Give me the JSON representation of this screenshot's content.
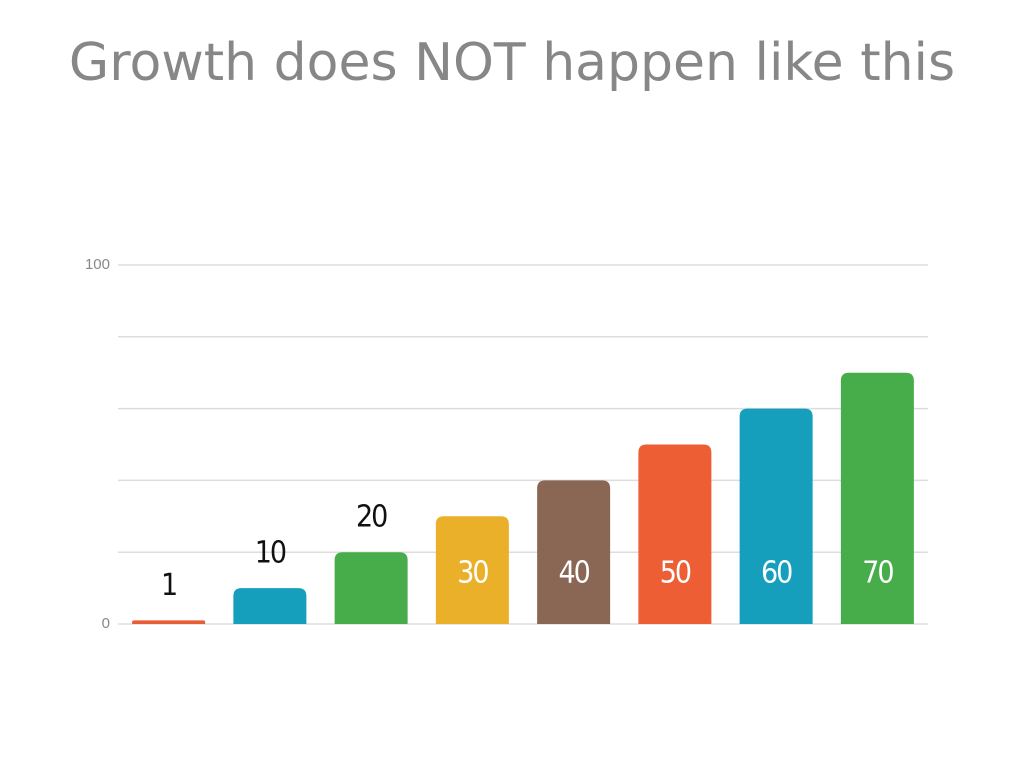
{
  "chart_data": {
    "type": "bar",
    "title": "Growth does NOT happen like this",
    "categories": [
      null,
      null,
      null,
      null,
      null,
      null,
      null,
      null
    ],
    "values": [
      1,
      10,
      20,
      30,
      40,
      50,
      60,
      70
    ],
    "colors": [
      "#e85d36",
      "#159fbc",
      "#47ac4a",
      "#eab02a",
      "#8a6654",
      "#ee5e34",
      "#159fbc",
      "#47ac4a"
    ],
    "ylim": [
      0,
      100
    ],
    "yticks": [
      0,
      100
    ],
    "gridlines": [
      0,
      20,
      40,
      60,
      80,
      100
    ],
    "grid": true
  }
}
